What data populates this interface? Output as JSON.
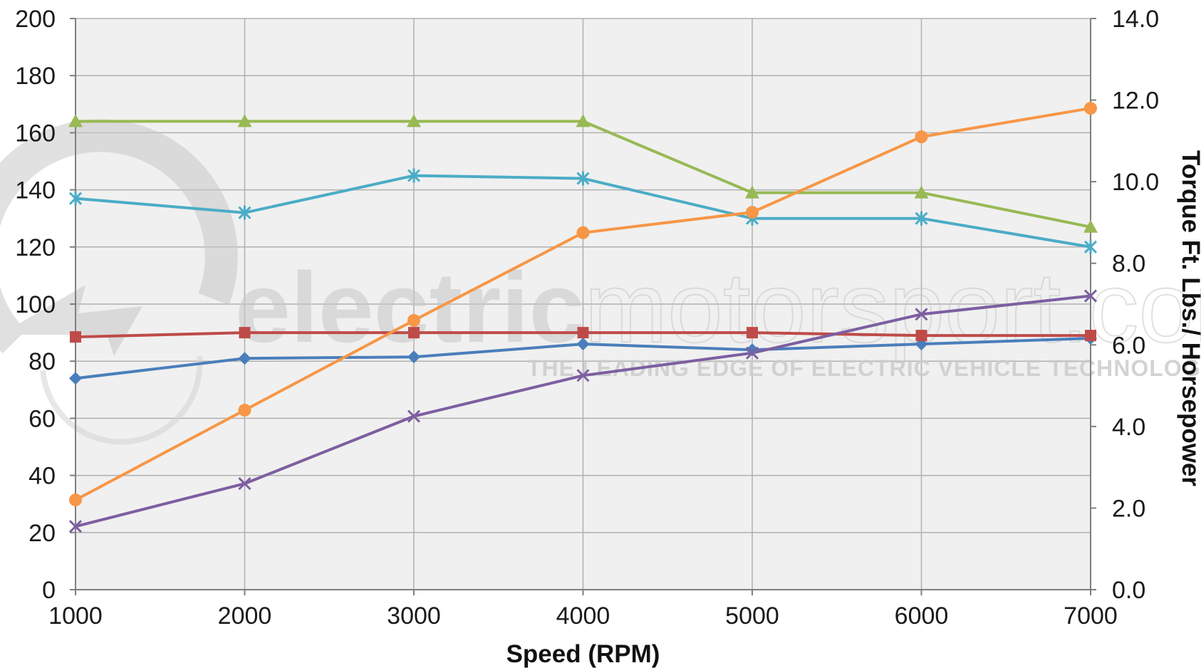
{
  "colors": {
    "plot_bg": "#f0f0f0",
    "grid": "#b0b0b0",
    "axis": "#7f7f7f",
    "watermark": "#c8c8c8"
  },
  "watermark": {
    "main_bold": "electric",
    "main_light": "motorsport.com",
    "tagline": "THE LEADING EDGE OF ELECTRIC VEHICLE TECHNOLOGY"
  },
  "chart_data": {
    "type": "line",
    "title": "",
    "xlabel": "Speed (RPM)",
    "ylabel_left": "",
    "ylabel_right": "Torque Ft. Lbs./ Horsepower",
    "x": [
      1000,
      2000,
      3000,
      4000,
      5000,
      6000,
      7000
    ],
    "xlim": [
      1000,
      7000
    ],
    "x_ticks": [
      "1000",
      "2000",
      "3000",
      "4000",
      "5000",
      "6000",
      "7000"
    ],
    "ylim_left": [
      0,
      200
    ],
    "y_ticks_left": [
      "0",
      "20",
      "40",
      "60",
      "80",
      "100",
      "120",
      "140",
      "160",
      "180",
      "200"
    ],
    "ylim_right": [
      0,
      14
    ],
    "y_ticks_right": [
      "0.0",
      "2.0",
      "4.0",
      "6.0",
      "8.0",
      "10.0",
      "12.0",
      "14.0"
    ],
    "grid": true,
    "legend": "none",
    "series": [
      {
        "color": "#4a7ebb",
        "marker": "diamond",
        "axis": "left",
        "values": [
          74,
          81,
          81.5,
          86,
          84,
          86,
          88
        ]
      },
      {
        "color": "#be4b48",
        "marker": "square",
        "axis": "left",
        "values": [
          88.5,
          90,
          90,
          90,
          90,
          89,
          89
        ]
      },
      {
        "color": "#98b954",
        "marker": "triangle",
        "axis": "left",
        "values": [
          164,
          164,
          164,
          164,
          139,
          139,
          127
        ]
      },
      {
        "color": "#4bacc6",
        "marker": "asterisk",
        "axis": "left",
        "values": [
          137,
          132,
          145,
          144,
          130,
          130,
          120
        ]
      },
      {
        "color": "#7d5fa0",
        "marker": "x",
        "axis": "right",
        "values": [
          1.55,
          2.6,
          4.25,
          5.25,
          5.8,
          6.75,
          7.2
        ]
      },
      {
        "color": "#f79646",
        "marker": "circle",
        "axis": "right",
        "values": [
          2.2,
          4.4,
          6.6,
          8.75,
          9.25,
          11.1,
          11.8
        ]
      }
    ]
  }
}
